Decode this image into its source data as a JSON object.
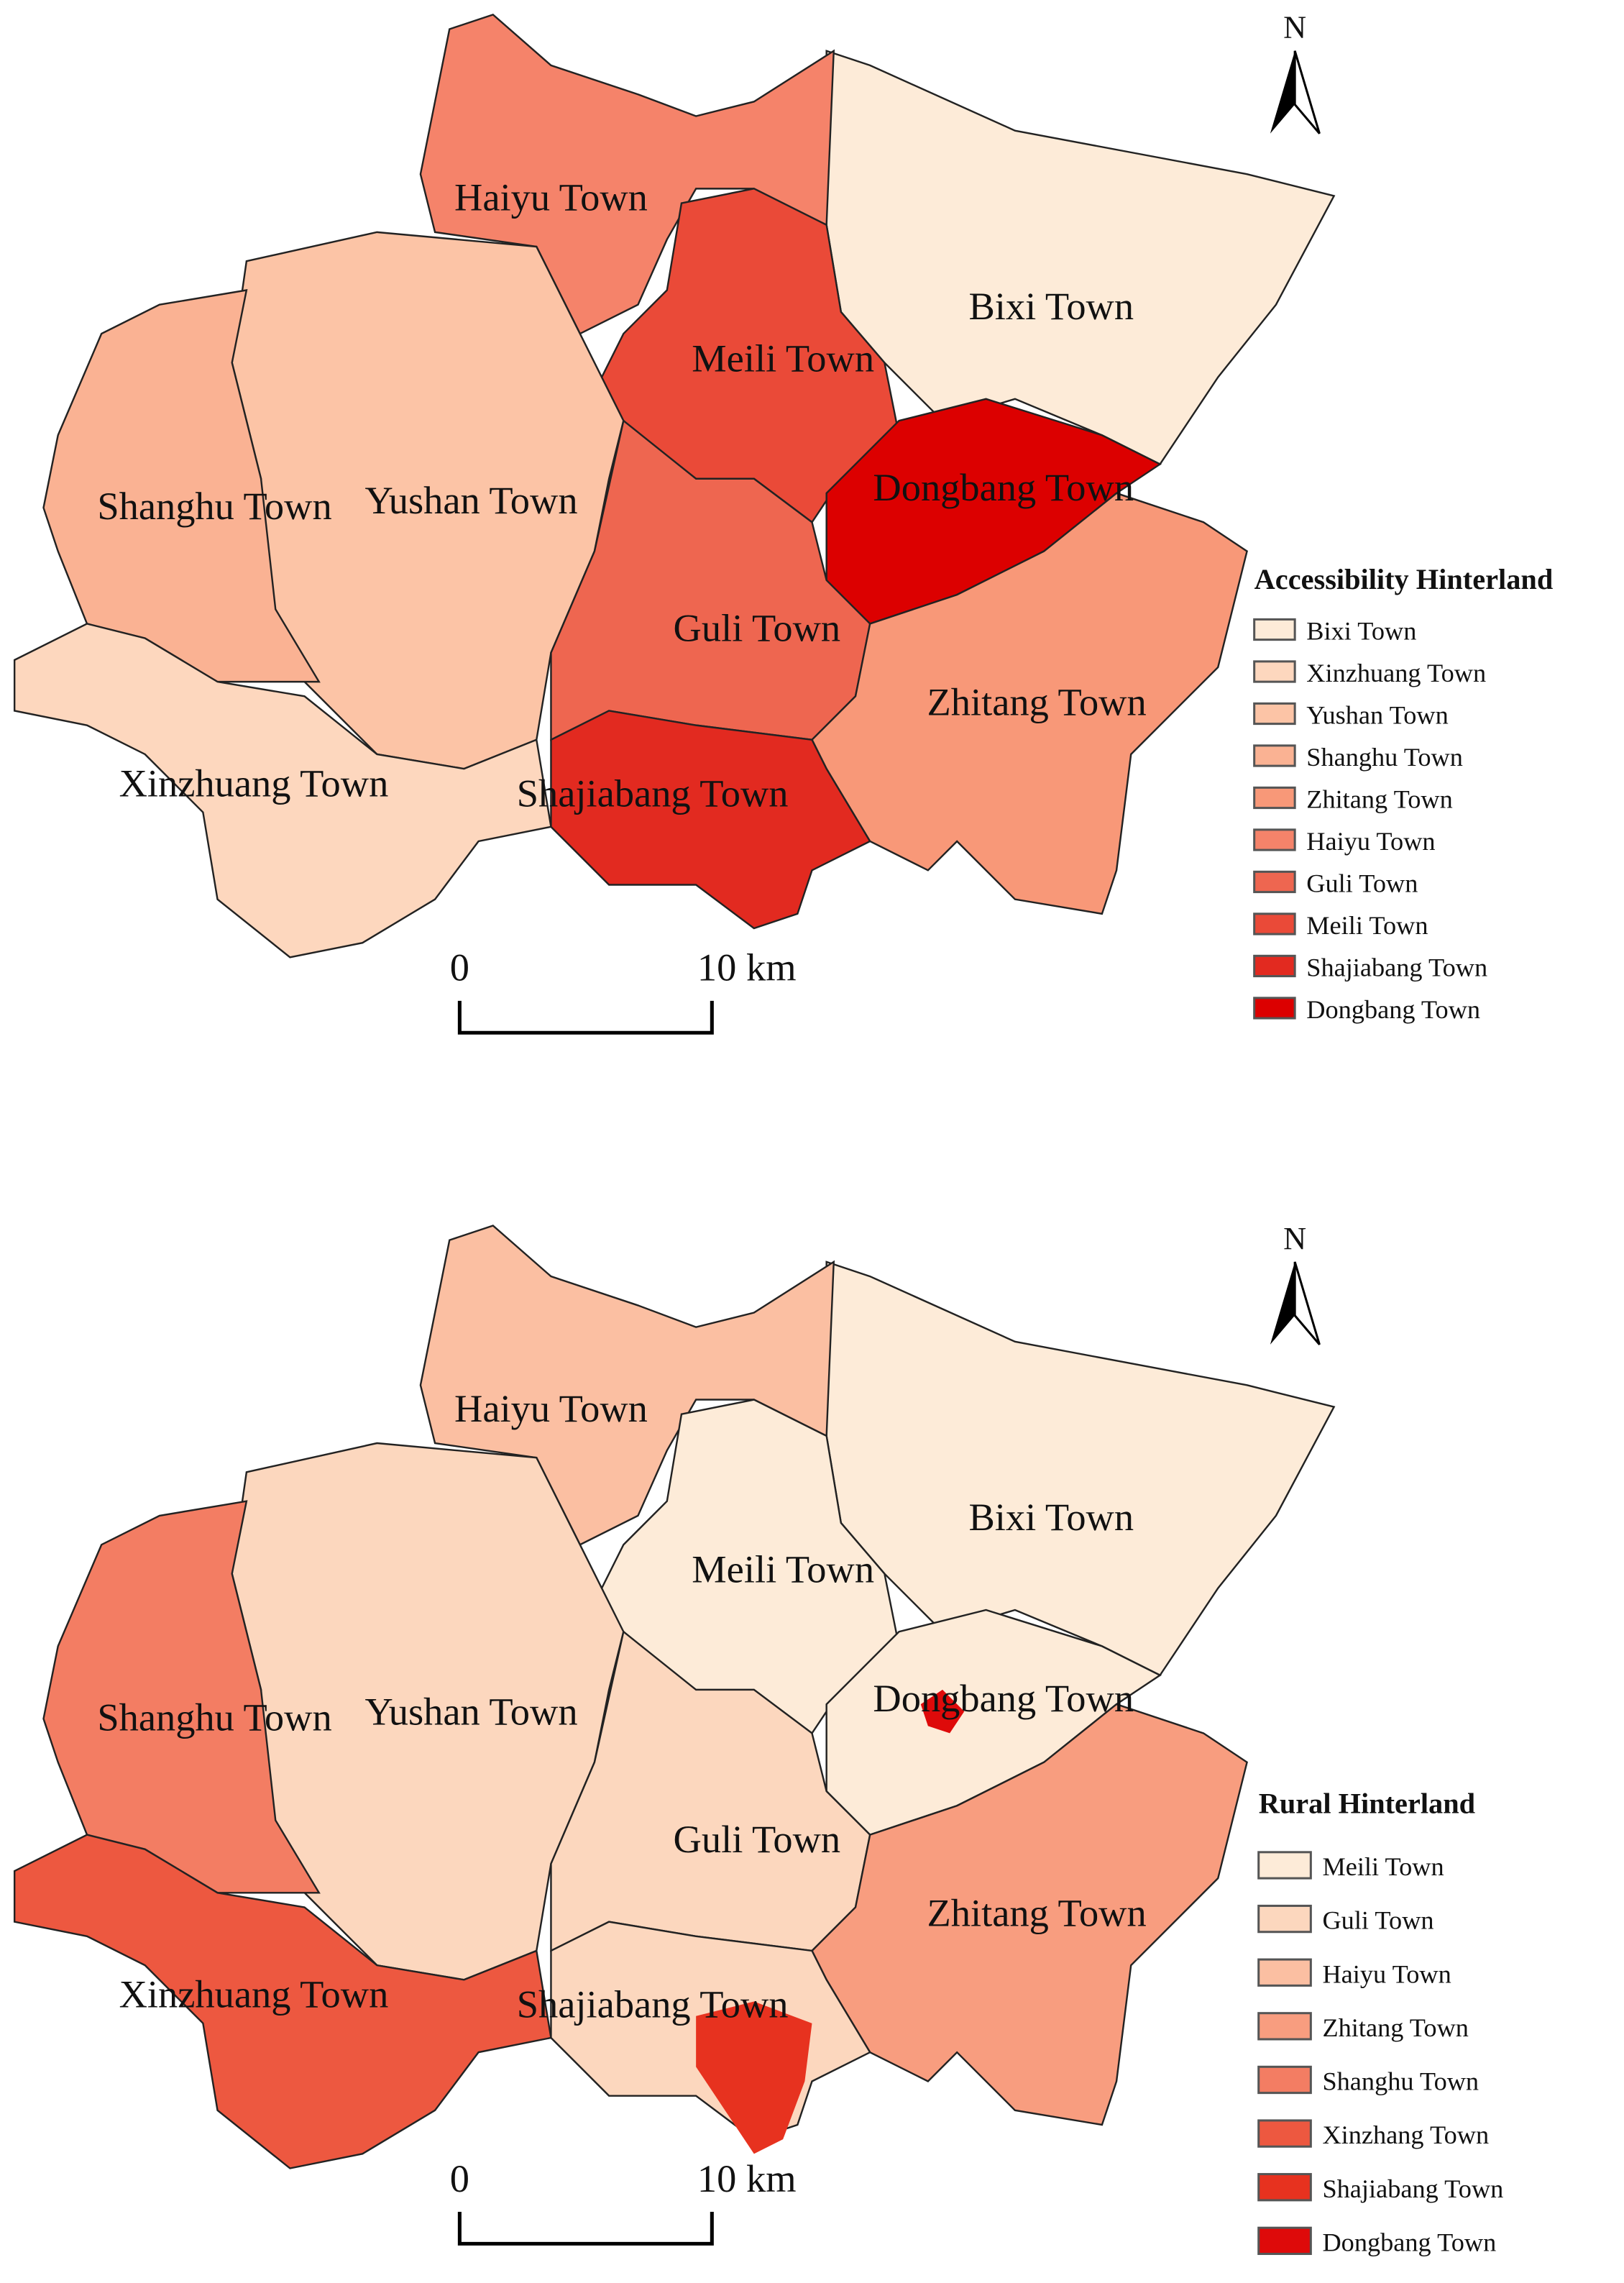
{
  "maps": [
    {
      "north": "N",
      "town_labels": [
        "Haiyu Town",
        "Bixi Town",
        "Meili Town",
        "Dongbang Town",
        "Shanghu Town",
        "Yushan Town",
        "Guli Town",
        "Zhitang Town",
        "Xinzhuang Town",
        "Shajiabang Town"
      ],
      "scale": {
        "start": "0",
        "end": "10 km"
      },
      "legend": {
        "title": "Accessibility Hinterland",
        "items": [
          {
            "label": "Bixi Town",
            "color": "#fdebd8"
          },
          {
            "label": "Xinzhuang Town",
            "color": "#fdd7be"
          },
          {
            "label": "Yushan Town",
            "color": "#fcc4a6"
          },
          {
            "label": "Shanghu Town",
            "color": "#fab293"
          },
          {
            "label": "Zhitang Town",
            "color": "#f89878"
          },
          {
            "label": "Haiyu Town",
            "color": "#f5836a"
          },
          {
            "label": "Guli Town",
            "color": "#ee6650"
          },
          {
            "label": "Meili Town",
            "color": "#ea4a38"
          },
          {
            "label": "Shajiabang Town",
            "color": "#e22a20"
          },
          {
            "label": "Dongbang Town",
            "color": "#dc0000"
          }
        ]
      }
    },
    {
      "north": "N",
      "town_labels": [
        "Haiyu Town",
        "Bixi Town",
        "Meili Town",
        "Dongbang Town",
        "Shanghu Town",
        "Yushan Town",
        "Guli Town",
        "Zhitang Town",
        "Xinzhuang Town",
        "Shajiabang Town"
      ],
      "scale": {
        "start": "0",
        "end": "10 km"
      },
      "legend": {
        "title": "Rural Hinterland",
        "items": [
          {
            "label": "Meili Town",
            "color": "#fdebd8"
          },
          {
            "label": "Guli Town",
            "color": "#fcd7be"
          },
          {
            "label": "Haiyu Town",
            "color": "#fbbfa2"
          },
          {
            "label": "Zhitang Town",
            "color": "#f89d7f"
          },
          {
            "label": "Shanghu Town",
            "color": "#f37d63"
          },
          {
            "label": "Xinzhang Town",
            "color": "#ed5840"
          },
          {
            "label": "Shajiabang Town",
            "color": "#e7321f"
          },
          {
            "label": "Dongbang Town",
            "color": "#de0a0a"
          }
        ]
      }
    }
  ]
}
